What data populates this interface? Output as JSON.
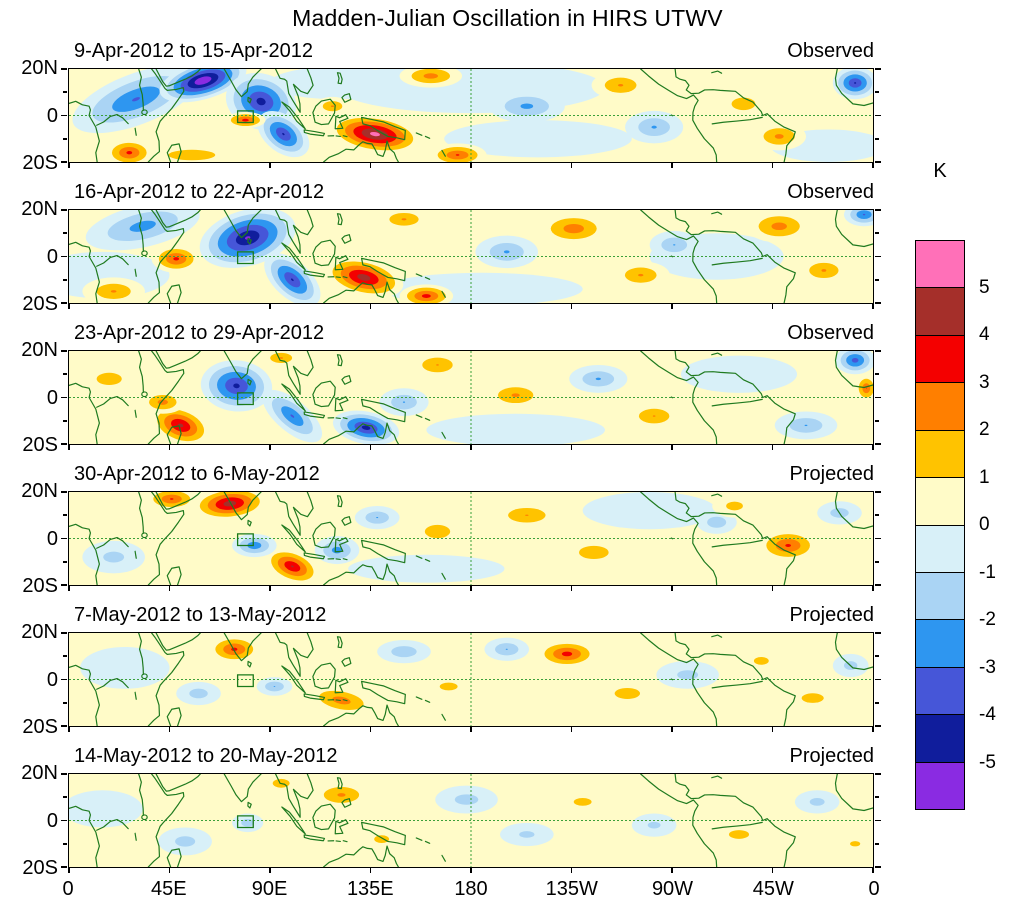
{
  "title": "Madden-Julian Oscillation in HIRS UTWV",
  "chart_data": {
    "type": "heatmap",
    "subtype": "filled_contour_longitude_latitude_anomaly_maps",
    "units": "K",
    "x_axis": {
      "tick_labels": [
        "0",
        "45E",
        "90E",
        "135E",
        "180",
        "135W",
        "90W",
        "45W",
        "0"
      ],
      "range_deg_lon": [
        0,
        360
      ],
      "grid": false
    },
    "y_axis": {
      "tick_labels": [
        "20N",
        "0",
        "20S"
      ],
      "range_deg_lat": [
        -20,
        20
      ]
    },
    "colorbar": {
      "label": "K",
      "tick_labels": [
        "5",
        "4",
        "3",
        "2",
        "1",
        "0",
        "-1",
        "-2",
        "-3",
        "-4",
        "-5"
      ],
      "segment_colors_top_to_bottom": [
        "#ff70b8",
        "#a52f2a",
        "#f40000",
        "#ff7f00",
        "#ffc300",
        "#fffbc8",
        "#d8f0f8",
        "#aad4f4",
        "#2e96f0",
        "#4656d8",
        "#101d9c",
        "#8a2be2"
      ]
    },
    "map_overlay": {
      "coastline_color": "#1f7a1f",
      "equator_dashed_line": true,
      "dateline_dashed_line": true,
      "marker_box_lon_lat_w_h": [
        75.5,
        -3,
        7,
        5
      ]
    },
    "panels": [
      {
        "date_range": "9-Apr-2012 to 15-Apr-2012",
        "source": "Observed",
        "features_lon_lat_rx_ry_rot_peakK": [
          [
            180,
            12,
            60,
            11,
            0,
            -0.6
          ],
          [
            210,
            -10,
            42,
            8,
            0,
            -0.6
          ],
          [
            120,
            14,
            30,
            7,
            0,
            -0.6
          ],
          [
            340,
            -13,
            26,
            7,
            0,
            -0.6
          ],
          [
            55,
            -17,
            28,
            6,
            0,
            1.6
          ],
          [
            30,
            7,
            30,
            11,
            -20,
            -3.2
          ],
          [
            60,
            15,
            20,
            8,
            -15,
            -6.2
          ],
          [
            86,
            6,
            16,
            12,
            15,
            -4.6
          ],
          [
            96,
            -8,
            13,
            8,
            35,
            -4.2
          ],
          [
            79,
            -2,
            9,
            3.5,
            0,
            3.6
          ],
          [
            27,
            -16,
            11,
            6,
            0,
            3.4
          ],
          [
            137,
            -8,
            21,
            8,
            8,
            5.6
          ],
          [
            118,
            4,
            8,
            4,
            0,
            2.2
          ],
          [
            162,
            17,
            14,
            5,
            0,
            2.6
          ],
          [
            174,
            -17,
            13,
            5,
            0,
            3.2
          ],
          [
            205,
            4,
            17,
            7,
            0,
            -2.4
          ],
          [
            247,
            13,
            13,
            6,
            0,
            2.2
          ],
          [
            262,
            -5,
            13,
            7,
            0,
            -2.2
          ],
          [
            302,
            5,
            12,
            6,
            0,
            1.8
          ],
          [
            318,
            -9,
            12,
            6,
            0,
            2.4
          ],
          [
            352,
            14,
            10,
            7,
            0,
            -4.2
          ]
        ]
      },
      {
        "date_range": "16-Apr-2012 to 22-Apr-2012",
        "source": "Observed",
        "features_lon_lat_rx_ry_rot_peakK": [
          [
            15,
            -8,
            30,
            10,
            0,
            -0.6
          ],
          [
            185,
            -14,
            45,
            7,
            0,
            -0.6
          ],
          [
            290,
            0,
            30,
            10,
            0,
            -0.6
          ],
          [
            33,
            13,
            26,
            9,
            -12,
            -2.6
          ],
          [
            80,
            8,
            22,
            12,
            -15,
            -5.3
          ],
          [
            100,
            -10,
            15,
            8,
            40,
            -4.2
          ],
          [
            48,
            -1,
            11,
            6,
            0,
            3.4
          ],
          [
            20,
            -15,
            14,
            6,
            0,
            2.2
          ],
          [
            132,
            -9,
            18,
            8,
            12,
            4.8
          ],
          [
            160,
            -17,
            12,
            5,
            0,
            3.6
          ],
          [
            150,
            16,
            12,
            5,
            0,
            2.2
          ],
          [
            196,
            2,
            14,
            7,
            0,
            -2.2
          ],
          [
            226,
            12,
            16,
            7,
            0,
            2.8
          ],
          [
            256,
            -8,
            13,
            6,
            0,
            2.2
          ],
          [
            271,
            5,
            11,
            6,
            0,
            -2.1
          ],
          [
            318,
            13,
            15,
            7,
            0,
            2.6
          ],
          [
            338,
            -6,
            12,
            6,
            0,
            2.2
          ],
          [
            356,
            18,
            9,
            5,
            0,
            -3.2
          ]
        ]
      },
      {
        "date_range": "23-Apr-2012 to 29-Apr-2012",
        "source": "Observed",
        "features_lon_lat_rx_ry_rot_peakK": [
          [
            200,
            -14,
            40,
            7,
            0,
            -0.6
          ],
          [
            300,
            10,
            26,
            8,
            0,
            -0.6
          ],
          [
            18,
            8,
            15,
            7,
            0,
            1.6
          ],
          [
            75,
            5,
            16,
            11,
            5,
            -4.4
          ],
          [
            100,
            -8,
            16,
            7,
            38,
            -3.2
          ],
          [
            133,
            -13,
            15,
            7,
            10,
            -4.6
          ],
          [
            50,
            -12,
            14,
            8,
            18,
            4.4
          ],
          [
            42,
            -2,
            10,
            5,
            0,
            2.6
          ],
          [
            95,
            17,
            9,
            4,
            0,
            2.2
          ],
          [
            165,
            14,
            13,
            6,
            0,
            2.1
          ],
          [
            200,
            1,
            14,
            6,
            0,
            2.3
          ],
          [
            150,
            -2,
            11,
            6,
            0,
            -2.1
          ],
          [
            237,
            8,
            13,
            6,
            0,
            -2.2
          ],
          [
            262,
            -8,
            13,
            6,
            0,
            2.1
          ],
          [
            330,
            -12,
            14,
            6,
            0,
            -2.1
          ],
          [
            352,
            16,
            9,
            6,
            0,
            -3.6
          ],
          [
            357,
            4,
            5,
            6,
            0,
            3.1
          ]
        ]
      },
      {
        "date_range": "30-Apr-2012 to 6-May-2012",
        "source": "Projected",
        "features_lon_lat_rx_ry_rot_peakK": [
          [
            160,
            -13,
            35,
            6,
            0,
            -0.6
          ],
          [
            260,
            12,
            30,
            8,
            0,
            -0.6
          ],
          [
            20,
            -8,
            14,
            7,
            0,
            -1.5
          ],
          [
            72,
            15,
            17,
            7,
            -5,
            4.8
          ],
          [
            46,
            17,
            12,
            5,
            0,
            3.2
          ],
          [
            100,
            -12,
            13,
            7,
            20,
            4.2
          ],
          [
            83,
            -3,
            10,
            5,
            0,
            -2.9
          ],
          [
            120,
            -5,
            10,
            6,
            0,
            -2.6
          ],
          [
            138,
            9,
            10,
            5,
            0,
            -2.1
          ],
          [
            165,
            3,
            12,
            6,
            0,
            1.9
          ],
          [
            205,
            10,
            16,
            6,
            0,
            2.1
          ],
          [
            235,
            -6,
            14,
            6,
            0,
            1.9
          ],
          [
            290,
            7,
            9,
            5,
            0,
            -1.9
          ],
          [
            298,
            14,
            10,
            5,
            0,
            1.6
          ],
          [
            322,
            -3,
            14,
            7,
            0,
            3.3
          ],
          [
            345,
            11,
            10,
            5,
            0,
            -1.7
          ]
        ]
      },
      {
        "date_range": "7-May-2012 to 13-May-2012",
        "source": "Projected",
        "features_lon_lat_rx_ry_rot_peakK": [
          [
            25,
            5,
            20,
            9,
            0,
            -0.6
          ],
          [
            74,
            13,
            12,
            6,
            0,
            3.4
          ],
          [
            58,
            -6,
            10,
            5,
            0,
            -1.7
          ],
          [
            92,
            -3,
            8,
            4,
            0,
            -2.1
          ],
          [
            122,
            -9,
            16,
            6,
            10,
            2.7
          ],
          [
            150,
            12,
            12,
            5,
            0,
            -1.9
          ],
          [
            170,
            -3,
            12,
            5,
            0,
            1.5
          ],
          [
            196,
            13,
            10,
            5,
            0,
            -2.1
          ],
          [
            223,
            11,
            14,
            6,
            0,
            3.6
          ],
          [
            250,
            -6,
            12,
            5,
            0,
            1.9
          ],
          [
            277,
            2,
            14,
            6,
            0,
            -1.5
          ],
          [
            310,
            8,
            10,
            5,
            0,
            1.5
          ],
          [
            333,
            -8,
            12,
            5,
            0,
            1.7
          ],
          [
            350,
            6,
            8,
            5,
            0,
            -1.6
          ]
        ]
      },
      {
        "date_range": "14-May-2012 to 20-May-2012",
        "source": "Projected",
        "features_lon_lat_rx_ry_rot_peakK": [
          [
            15,
            5,
            18,
            8,
            0,
            -0.6
          ],
          [
            52,
            -9,
            12,
            6,
            0,
            -1.6
          ],
          [
            95,
            16,
            8,
            4,
            0,
            1.9
          ],
          [
            122,
            11,
            14,
            6,
            0,
            2.3
          ],
          [
            80,
            -1,
            7,
            4,
            0,
            -1.7
          ],
          [
            140,
            -8,
            10,
            5,
            0,
            1.5
          ],
          [
            178,
            9,
            14,
            6,
            0,
            -1.6
          ],
          [
            205,
            -6,
            12,
            5,
            0,
            -1.4
          ],
          [
            230,
            8,
            12,
            5,
            0,
            1.5
          ],
          [
            262,
            -2,
            10,
            5,
            0,
            -1.4
          ],
          [
            300,
            -6,
            12,
            5,
            0,
            1.6
          ],
          [
            335,
            8,
            10,
            5,
            0,
            -1.5
          ],
          [
            352,
            -10,
            8,
            4,
            0,
            1.4
          ]
        ]
      }
    ]
  }
}
